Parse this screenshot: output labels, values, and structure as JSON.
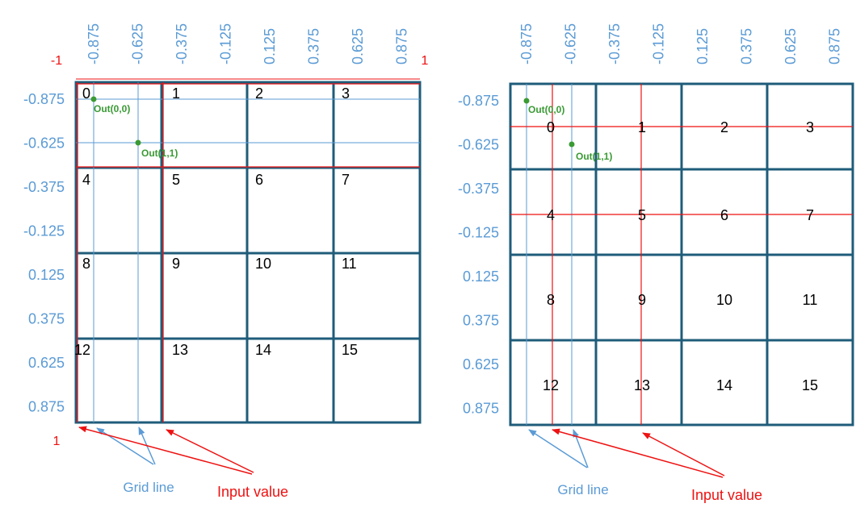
{
  "tick_labels": [
    "-0.875",
    "-0.625",
    "-0.375",
    "-0.125",
    "0.125",
    "0.375",
    "0.625",
    "0.875"
  ],
  "cell_numbers": [
    "0",
    "1",
    "2",
    "3",
    "4",
    "5",
    "6",
    "7",
    "8",
    "9",
    "10",
    "11",
    "12",
    "13",
    "14",
    "15"
  ],
  "range_min_label": "-1",
  "range_max_label": "1",
  "out_labels": [
    "Out(0,0)",
    "Out(1,1)"
  ],
  "grid_line_caption": "Grid line",
  "input_value_caption": "Input value",
  "colors": {
    "grid_border": "#1f5c7a",
    "tick_text": "#5b9bd5",
    "grid_line": "#5b9bd5",
    "input_value": "#ee1111",
    "out_point": "#3a9a34"
  }
}
